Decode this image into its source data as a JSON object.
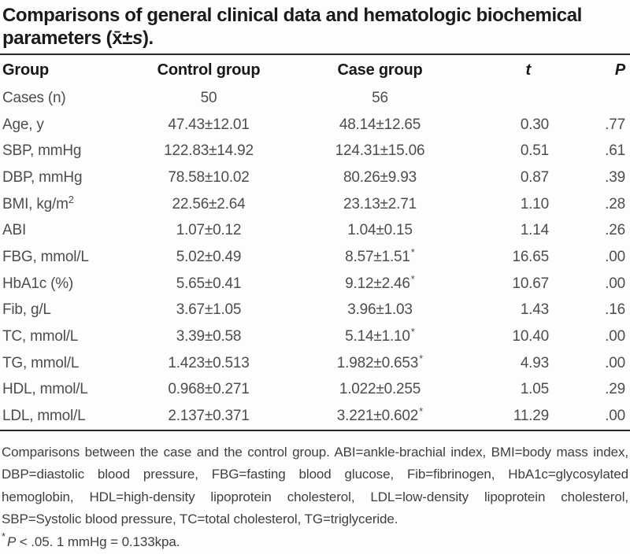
{
  "title": {
    "line1": "Comparisons of general clinical data and hematologic biochemical",
    "line2_prefix": "parameters (",
    "xbar": "x̄",
    "plus_minus": "±",
    "s_symbol": "s",
    "line2_suffix": ")."
  },
  "table": {
    "headers": {
      "group": "Group",
      "control": "Control group",
      "case": "Case group",
      "t": "t",
      "p": "P"
    },
    "rows": [
      {
        "label": "Cases (n)",
        "control": "50",
        "case": "56",
        "case_star": false,
        "t": "",
        "p": ""
      },
      {
        "label": "Age, y",
        "control": "47.43±12.01",
        "case": "48.14±12.65",
        "case_star": false,
        "t": "0.30",
        "p": ".77"
      },
      {
        "label": "SBP, mmHg",
        "control": "122.83±14.92",
        "case": "124.31±15.06",
        "case_star": false,
        "t": "0.51",
        "p": ".61"
      },
      {
        "label": "DBP, mmHg",
        "control": "78.58±10.02",
        "case": "80.26±9.93",
        "case_star": false,
        "t": "0.87",
        "p": ".39"
      },
      {
        "label": "BMI, kg/m",
        "label_sup": "2",
        "control": "22.56±2.64",
        "case": "23.13±2.71",
        "case_star": false,
        "t": "1.10",
        "p": ".28"
      },
      {
        "label": "ABI",
        "control": "1.07±0.12",
        "case": "1.04±0.15",
        "case_star": false,
        "t": "1.14",
        "p": ".26"
      },
      {
        "label": "FBG, mmol/L",
        "control": "5.02±0.49",
        "case": "8.57±1.51",
        "case_star": true,
        "t": "16.65",
        "p": ".00"
      },
      {
        "label": "HbA1c (%)",
        "control": "5.65±0.41",
        "case": "9.12±2.46",
        "case_star": true,
        "t": "10.67",
        "p": ".00"
      },
      {
        "label": "Fib, g/L",
        "control": "3.67±1.05",
        "case": "3.96±1.03",
        "case_star": false,
        "t": "1.43",
        "p": ".16"
      },
      {
        "label": "TC, mmol/L",
        "control": "3.39±0.58",
        "case": "5.14±1.10",
        "case_star": true,
        "t": "10.40",
        "p": ".00"
      },
      {
        "label": "TG, mmol/L",
        "control": "1.423±0.513",
        "case": "1.982±0.653",
        "case_star": true,
        "t": "4.93",
        "p": ".00"
      },
      {
        "label": "HDL, mmol/L",
        "control": "0.968±0.271",
        "case": "1.022±0.255",
        "case_star": false,
        "t": "1.05",
        "p": ".29"
      },
      {
        "label": "LDL, mmol/L",
        "control": "2.137±0.371",
        "case": "3.221±0.602",
        "case_star": true,
        "t": "11.29",
        "p": ".00"
      }
    ]
  },
  "footnotes": {
    "abbreviations": "Comparisons between the case and the control group. ABI=ankle-brachial index, BMI=body mass index, DBP=diastolic blood pressure, FBG=fasting blood glucose, Fib=fibrinogen, HbA1c=glycosylated hemoglobin, HDL=high-density lipoprotein cholesterol, LDL=low-density lipoprotein cholesterol, SBP=Systolic blood pressure, TC=total cholesterol, TG=triglyceride.",
    "significance": {
      "star": "*",
      "p": "P",
      "rest": "< .05.  1 mmHg = 0.133kpa."
    }
  }
}
